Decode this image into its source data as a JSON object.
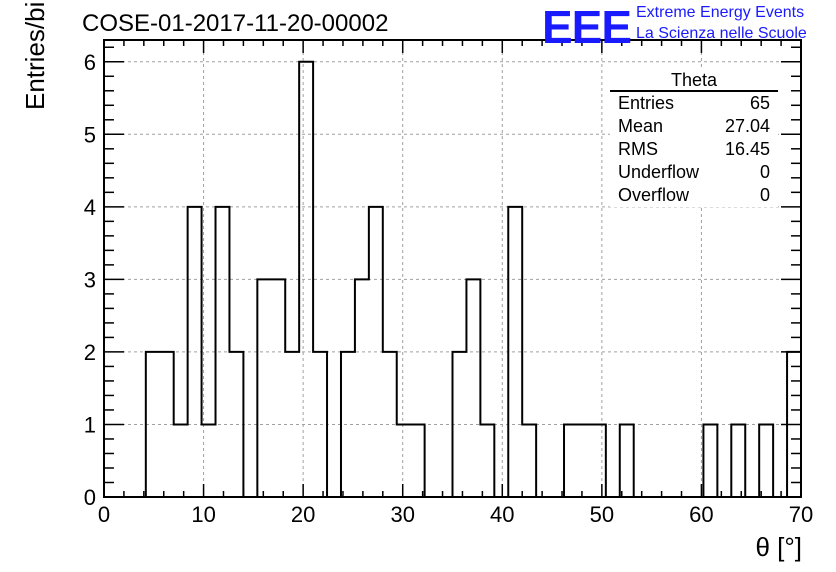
{
  "header": {
    "run_title": "COSE-01-2017-11-20-00002",
    "logo_text": "EEE",
    "logo_line1": "Extreme Energy Events",
    "logo_line2": "La Scienza nelle Scuole"
  },
  "stats": {
    "title": "Theta",
    "rows": [
      {
        "label": "Entries",
        "value": "65"
      },
      {
        "label": "Mean",
        "value": "27.04"
      },
      {
        "label": "RMS",
        "value": "16.45"
      },
      {
        "label": "Underflow",
        "value": "0"
      },
      {
        "label": "Overflow",
        "value": "0"
      }
    ]
  },
  "colors": {
    "line": "#000000",
    "grid": "#a0a0a0",
    "logo": "#1a1aff"
  },
  "chart_data": {
    "type": "bar",
    "style": "step-histogram",
    "xlabel": "θ [°]",
    "ylabel": "Entries/bin",
    "xlim": [
      0,
      70
    ],
    "ylim": [
      0,
      6.3
    ],
    "grid": true,
    "x_ticks": [
      0,
      10,
      20,
      30,
      40,
      50,
      60,
      70
    ],
    "y_ticks": [
      0,
      1,
      2,
      3,
      4,
      5,
      6
    ],
    "bin_width": 1.4,
    "bin_starts": [
      0,
      1.4,
      2.8,
      4.2,
      5.6,
      7,
      8.4,
      9.8,
      11.2,
      12.6,
      14,
      15.4,
      16.8,
      18.2,
      19.6,
      21,
      22.4,
      23.8,
      25.2,
      26.6,
      28,
      29.4,
      30.8,
      32.2,
      33.6,
      35,
      36.4,
      37.8,
      39.2,
      40.6,
      42,
      43.4,
      44.8,
      46.2,
      47.6,
      49,
      50.4,
      51.8,
      53.2,
      54.6,
      56,
      57.4,
      58.8,
      60.2,
      61.6,
      63,
      64.4,
      65.8,
      67.2,
      68.6
    ],
    "values": [
      0,
      0,
      0,
      2,
      2,
      1,
      4,
      1,
      4,
      2,
      0,
      3,
      3,
      2,
      6,
      2,
      0,
      2,
      3,
      4,
      2,
      1,
      1,
      0,
      0,
      2,
      3,
      1,
      0,
      4,
      1,
      0,
      0,
      1,
      1,
      1,
      0,
      1,
      0,
      0,
      0,
      0,
      0,
      1,
      0,
      1,
      0,
      1,
      0,
      2
    ]
  }
}
